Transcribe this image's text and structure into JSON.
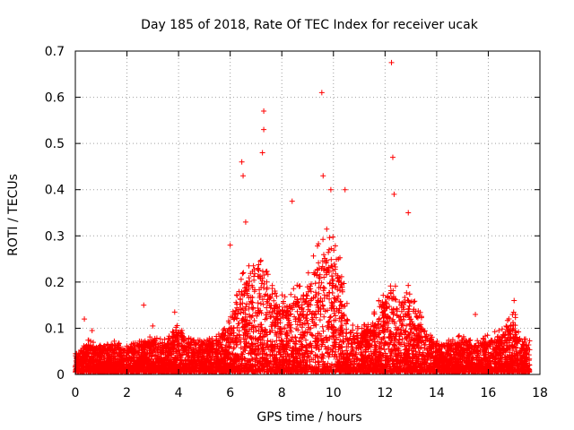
{
  "chart_data": {
    "type": "scatter",
    "title": "Day 185 of 2018, Rate Of TEC Index for receiver ucak",
    "xlabel": "GPS time / hours",
    "ylabel": "ROTI / TECUs",
    "xlim": [
      0,
      18
    ],
    "ylim": [
      0,
      0.7
    ],
    "xticks": [
      0,
      2,
      4,
      6,
      8,
      10,
      12,
      14,
      16,
      18
    ],
    "yticks": [
      0,
      0.1,
      0.2,
      0.3,
      0.4,
      0.5,
      0.6,
      0.7
    ],
    "xtick_labels": [
      "0",
      "2",
      "4",
      "6",
      "8",
      "10",
      "12",
      "14",
      "16",
      "18"
    ],
    "ytick_labels": [
      "0",
      "0.1",
      "0.2",
      "0.3",
      "0.4",
      "0.5",
      "0.6",
      "0.7"
    ],
    "grid": true,
    "marker": "+",
    "color": "#ff0000",
    "x_range_of_data": [
      0,
      17.6
    ],
    "series": [
      {
        "name": "ROTI",
        "envelope_x": [
          0.0,
          0.5,
          1.0,
          1.5,
          2.0,
          2.5,
          3.0,
          3.5,
          4.0,
          4.5,
          5.0,
          5.5,
          6.0,
          6.3,
          6.6,
          7.0,
          7.3,
          7.6,
          8.0,
          8.5,
          9.0,
          9.4,
          9.7,
          10.0,
          10.3,
          10.6,
          11.0,
          11.5,
          12.0,
          12.3,
          12.6,
          13.0,
          13.5,
          14.0,
          14.5,
          15.0,
          15.5,
          16.0,
          16.5,
          17.0,
          17.3,
          17.6
        ],
        "envelope_y": [
          0.04,
          0.06,
          0.05,
          0.06,
          0.05,
          0.06,
          0.07,
          0.06,
          0.09,
          0.07,
          0.06,
          0.07,
          0.1,
          0.15,
          0.2,
          0.22,
          0.2,
          0.16,
          0.14,
          0.15,
          0.18,
          0.24,
          0.26,
          0.24,
          0.2,
          0.1,
          0.08,
          0.1,
          0.16,
          0.18,
          0.15,
          0.16,
          0.09,
          0.06,
          0.06,
          0.07,
          0.06,
          0.07,
          0.08,
          0.11,
          0.07,
          0.06
        ],
        "outliers": [
          [
            0.35,
            0.12
          ],
          [
            0.65,
            0.095
          ],
          [
            2.65,
            0.15
          ],
          [
            3.0,
            0.105
          ],
          [
            3.85,
            0.135
          ],
          [
            6.0,
            0.28
          ],
          [
            6.45,
            0.46
          ],
          [
            6.5,
            0.43
          ],
          [
            6.6,
            0.33
          ],
          [
            7.3,
            0.57
          ],
          [
            7.3,
            0.53
          ],
          [
            7.25,
            0.48
          ],
          [
            8.4,
            0.375
          ],
          [
            9.55,
            0.61
          ],
          [
            9.6,
            0.43
          ],
          [
            9.9,
            0.4
          ],
          [
            10.45,
            0.4
          ],
          [
            12.25,
            0.675
          ],
          [
            12.3,
            0.47
          ],
          [
            12.35,
            0.39
          ],
          [
            12.9,
            0.35
          ],
          [
            15.5,
            0.13
          ],
          [
            17.0,
            0.16
          ]
        ]
      }
    ]
  }
}
